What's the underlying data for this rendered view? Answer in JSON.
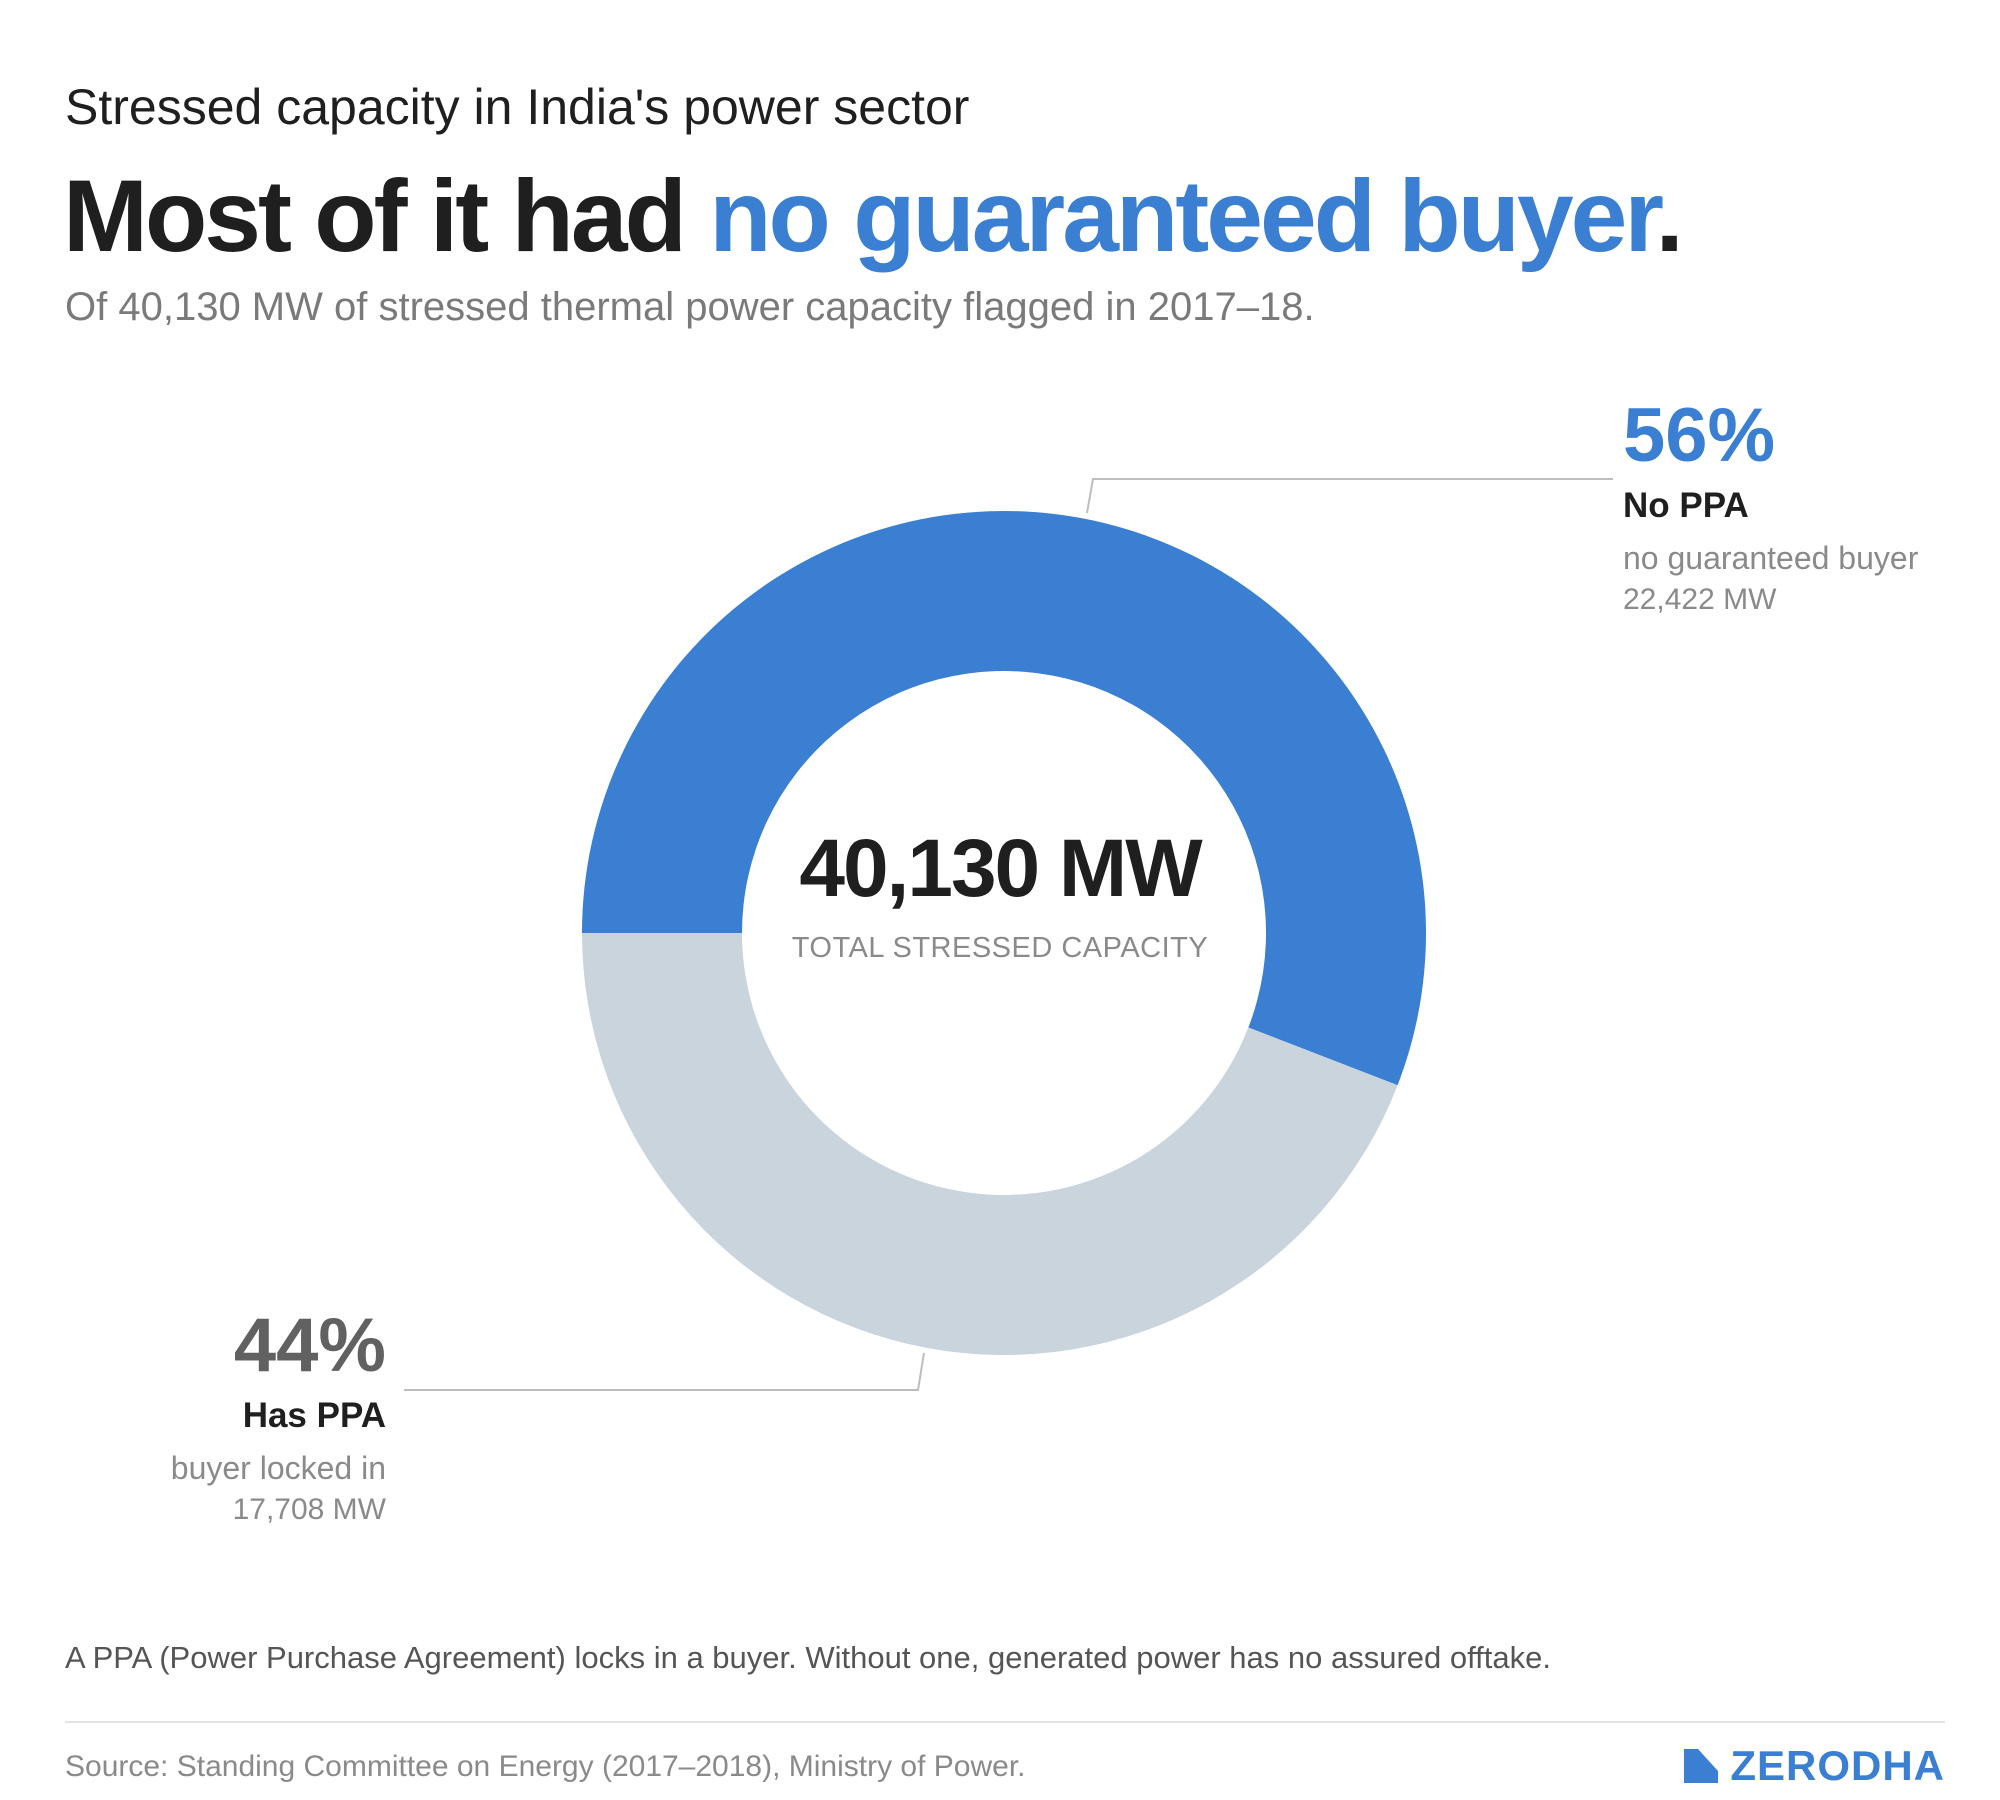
{
  "header": {
    "eyebrow": "Stressed capacity in India's power sector",
    "headline_main": "Most of it had ",
    "headline_accent": "no guaranteed buyer",
    "headline_end": ".",
    "subhead": "Of 40,130 MW of stressed thermal power capacity flagged in 2017–18."
  },
  "center": {
    "value": "40,130 MW",
    "label": "TOTAL STRESSED CAPACITY"
  },
  "callouts": {
    "no_ppa": {
      "pct": "56%",
      "category": "No PPA",
      "description": "no guaranteed buyer",
      "mw": "22,422 MW"
    },
    "has_ppa": {
      "pct": "44%",
      "category": "Has PPA",
      "description": "buyer locked in",
      "mw": "17,708 MW"
    }
  },
  "footer": {
    "note": "A PPA (Power Purchase Agreement) locks in a buyer. Without one, generated power has no assured offtake.",
    "source": "Source: Standing Committee on Energy (2017–2018), Ministry of Power.",
    "brand": "ZERODHA"
  },
  "colors": {
    "accent": "#3a7fd2",
    "secondary": "#c9d4dd",
    "text": "#1f1f1f",
    "muted": "#8a8a8a"
  },
  "chart_data": {
    "type": "pie",
    "variant": "donut",
    "title": "Most of it had no guaranteed buyer.",
    "total_mw": 40130,
    "categories": [
      "No PPA",
      "Has PPA"
    ],
    "values": [
      22422,
      17708
    ],
    "percent": [
      56,
      44
    ],
    "start_angle_deg": 180,
    "direction": "clockwise",
    "colors": [
      "#3a7fd2",
      "#c9d4dd"
    ]
  }
}
